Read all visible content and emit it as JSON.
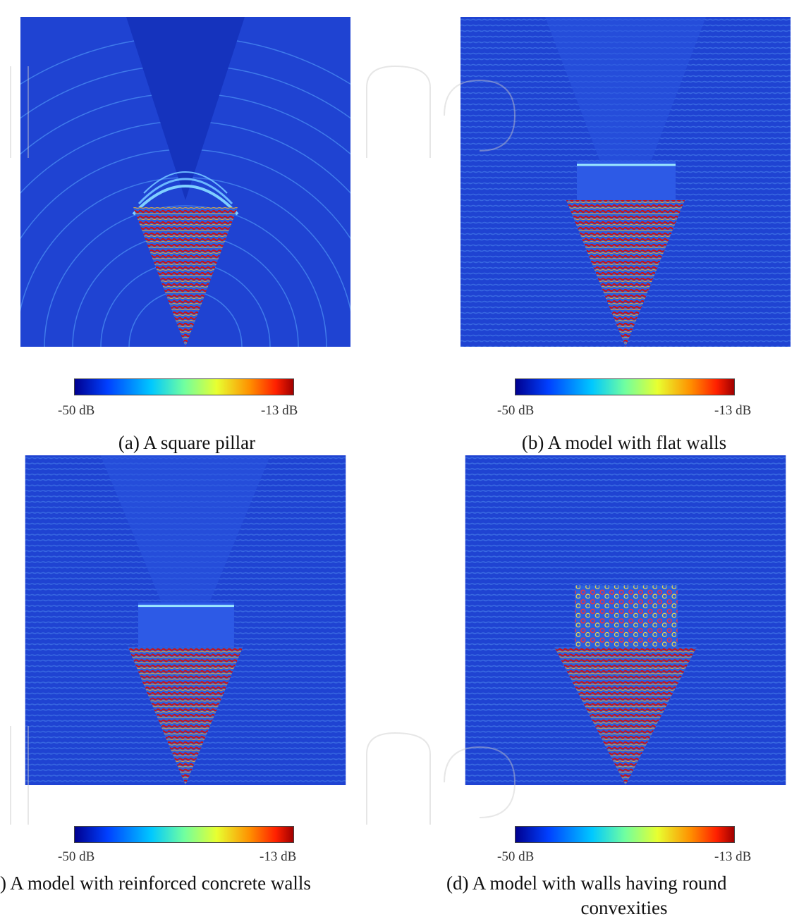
{
  "colorbar": {
    "min_label": "-50 dB",
    "max_label": "-13 dB",
    "colors": [
      "#00008f",
      "#0050ff",
      "#00d0ff",
      "#7fff7f",
      "#ffd000",
      "#ff4000",
      "#a00000"
    ]
  },
  "panels": [
    {
      "caption": "(a) A square pillar",
      "min_label": "-50 dB",
      "max_label": "-13 dB",
      "plot_icon": "wave-field-simulation-a"
    },
    {
      "caption": "(b) A model with flat walls",
      "min_label": "-50 dB",
      "max_label": "-13 dB",
      "plot_icon": "wave-field-simulation-b"
    },
    {
      "caption": ") A model with reinforced concrete walls",
      "min_label": "-50 dB",
      "max_label": "-13 dB",
      "plot_icon": "wave-field-simulation-c"
    },
    {
      "caption_line1": "(d) A model with walls having round",
      "caption_line2": "convexities",
      "min_label": "-50 dB",
      "max_label": "-13 dB",
      "plot_icon": "wave-field-simulation-d"
    }
  ],
  "theme": {
    "background_blue": "#1f43d2",
    "wave_line": "#7fd0ff",
    "hot_red": "#d01010",
    "hot_orange": "#ff9a10"
  }
}
